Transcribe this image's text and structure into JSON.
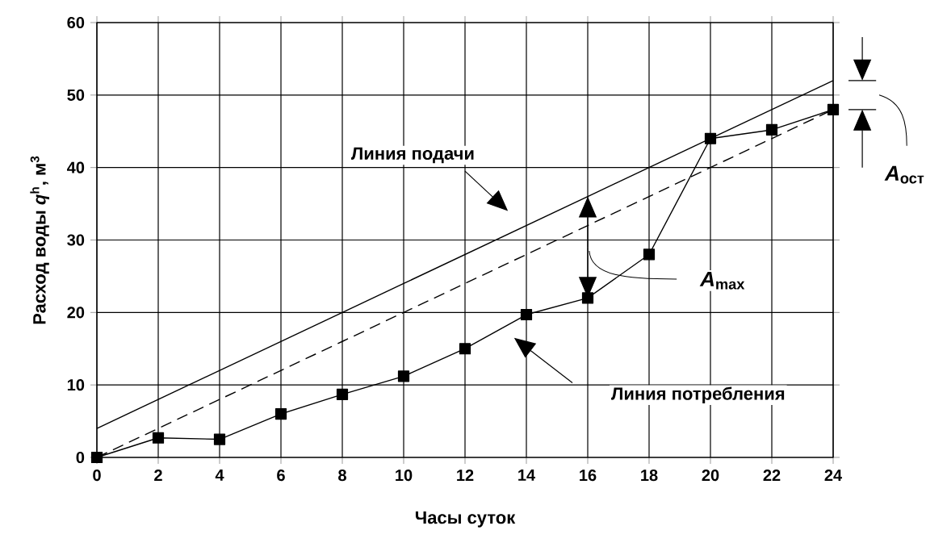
{
  "chart_data": {
    "type": "line",
    "xlabel": "Часы суток",
    "ylabel": "Расход воды *q*$^{h}$, м$^{3}$",
    "x": [
      0,
      2,
      4,
      6,
      8,
      10,
      12,
      14,
      16,
      18,
      20,
      22,
      24
    ],
    "series": [
      {
        "color": "#000000",
        "values": [
          4,
          8,
          12,
          16,
          20,
          24,
          28,
          32,
          36,
          40,
          44,
          48,
          52
        ],
        "marker": "none",
        "line_style": "solid"
      },
      {
        "color": "#000000",
        "values": [
          0,
          4,
          8,
          12,
          16,
          20,
          24,
          28,
          32,
          36,
          40,
          44,
          48
        ],
        "marker": "none",
        "line_style": "dashed"
      },
      {
        "color": "#000000",
        "values": [
          0,
          2.7,
          2.5,
          6,
          8.7,
          11.2,
          15,
          19.7,
          22,
          28,
          44,
          45.2,
          48
        ],
        "marker": "square",
        "line_style": "solid"
      }
    ],
    "annotations": [
      "*A*$_{max}$",
      "*A*$_{ост}$",
      "Линия подачи",
      "Линия потребления"
    ],
    "xlim": [
      0,
      24
    ],
    "ylim": [
      0,
      60
    ],
    "xticks": [
      0,
      2,
      4,
      6,
      8,
      10,
      12,
      14,
      16,
      18,
      20,
      22,
      24
    ],
    "yticks": [
      0,
      10,
      20,
      30,
      40,
      50,
      60
    ],
    "grid": true
  }
}
